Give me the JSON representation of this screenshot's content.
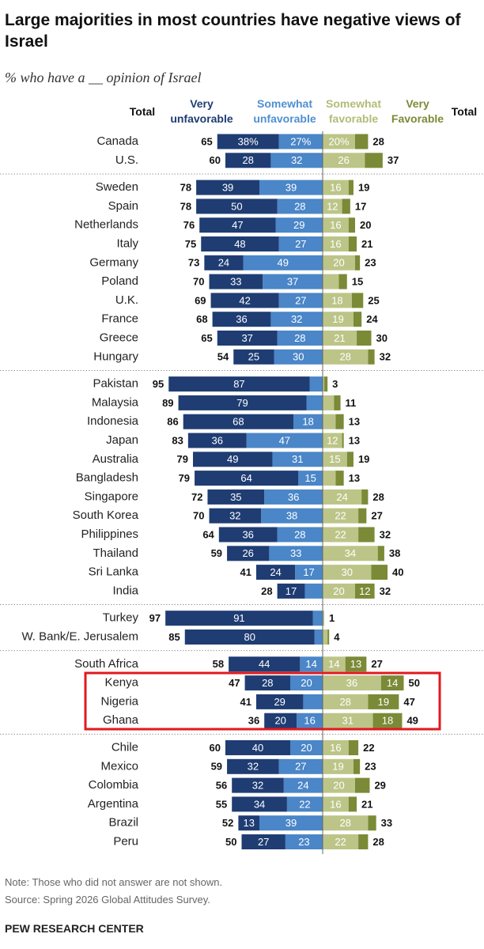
{
  "chart_data": {
    "type": "diverging_bar",
    "title": "Large majorities in most countries have negative views of Israel",
    "subtitle": "% who have a __ opinion of Israel",
    "categories": [
      [
        "Canada",
        "U.S."
      ],
      [
        "Sweden",
        "Spain",
        "Netherlands",
        "Italy",
        "Germany",
        "Poland",
        "U.K.",
        "France",
        "Greece",
        "Hungary"
      ],
      [
        "Pakistan",
        "Malaysia",
        "Indonesia",
        "Japan",
        "Australia",
        "Bangladesh",
        "Singapore",
        "South Korea",
        "Philippines",
        "Thailand",
        "Sri Lanka",
        "India"
      ],
      [
        "Turkey",
        "W. Bank/E. Jerusalem"
      ],
      [
        "South Africa",
        "Kenya",
        "Nigeria",
        "Ghana"
      ],
      [
        "Chile",
        "Mexico",
        "Colombia",
        "Argentina",
        "Brazil",
        "Peru"
      ]
    ],
    "series": [
      {
        "name": "Very unfavorable",
        "color": "#1f3d73",
        "side": "negative",
        "values": [
          [
            38,
            28
          ],
          [
            39,
            50,
            47,
            48,
            24,
            33,
            42,
            36,
            37,
            25
          ],
          [
            87,
            79,
            68,
            36,
            49,
            64,
            35,
            32,
            36,
            26,
            24,
            17
          ],
          [
            91,
            80
          ],
          [
            44,
            28,
            29,
            20
          ],
          [
            40,
            32,
            32,
            34,
            13,
            27
          ]
        ],
        "value_labels": [
          [
            "38%",
            "28"
          ],
          [
            "39",
            "50",
            "47",
            "48",
            "24",
            "33",
            "42",
            "36",
            "37",
            "25"
          ],
          [
            "87",
            "79",
            "68",
            "36",
            "49",
            "64",
            "35",
            "32",
            "36",
            "26",
            "24",
            "17"
          ],
          [
            "91",
            "80"
          ],
          [
            "44",
            "28",
            "29",
            "20"
          ],
          [
            "40",
            "32",
            "32",
            "34",
            "13",
            "27"
          ]
        ]
      },
      {
        "name": "Somewhat unfavorable",
        "color": "#4a86c8",
        "side": "negative",
        "values": [
          [
            27,
            32
          ],
          [
            39,
            28,
            29,
            27,
            49,
            37,
            27,
            32,
            28,
            30
          ],
          [
            8,
            10,
            18,
            47,
            31,
            15,
            36,
            38,
            28,
            33,
            17,
            11
          ],
          [
            6,
            5
          ],
          [
            14,
            20,
            12,
            16
          ],
          [
            20,
            27,
            24,
            22,
            39,
            23
          ]
        ],
        "value_labels": [
          [
            "27%",
            "32"
          ],
          [
            "39",
            "28",
            "29",
            "27",
            "49",
            "37",
            "27",
            "32",
            "28",
            "30"
          ],
          [
            null,
            null,
            "18",
            "47",
            "31",
            "15",
            "36",
            "38",
            "28",
            "33",
            "17",
            null
          ],
          [
            null,
            null
          ],
          [
            "14",
            "20",
            null,
            "16"
          ],
          [
            "20",
            "27",
            "24",
            "22",
            "39",
            "23"
          ]
        ]
      },
      {
        "name": "Somewhat favorable",
        "color": "#bcc587",
        "side": "positive",
        "values": [
          [
            20,
            26
          ],
          [
            16,
            12,
            16,
            16,
            20,
            10,
            18,
            19,
            21,
            28
          ],
          [
            1,
            7,
            8,
            12,
            15,
            8,
            24,
            22,
            22,
            34,
            30,
            20
          ],
          [
            1,
            3
          ],
          [
            14,
            36,
            28,
            31
          ],
          [
            16,
            19,
            20,
            16,
            28,
            22
          ]
        ],
        "value_labels": [
          [
            "20%",
            "26"
          ],
          [
            "16",
            "12",
            "16",
            "16",
            "20",
            null,
            "18",
            "19",
            "21",
            "28"
          ],
          [
            null,
            null,
            null,
            "12",
            "15",
            null,
            "24",
            "22",
            "22",
            "34",
            "30",
            "20"
          ],
          [
            null,
            null
          ],
          [
            "14",
            "36",
            "28",
            "31"
          ],
          [
            "16",
            "19",
            "20",
            "16",
            "28",
            "22"
          ]
        ]
      },
      {
        "name": "Very Favorable",
        "color": "#7b8a36",
        "side": "positive",
        "values": [
          [
            8,
            11
          ],
          [
            3,
            5,
            4,
            5,
            3,
            5,
            7,
            5,
            9,
            4
          ],
          [
            2,
            4,
            5,
            1,
            4,
            5,
            4,
            5,
            10,
            4,
            10,
            12
          ],
          [
            0,
            1
          ],
          [
            13,
            14,
            19,
            18
          ],
          [
            6,
            4,
            9,
            5,
            5,
            6
          ]
        ],
        "value_labels": [
          [
            null,
            null
          ],
          [
            null,
            null,
            null,
            null,
            null,
            null,
            null,
            null,
            null,
            null
          ],
          [
            null,
            null,
            null,
            null,
            null,
            null,
            null,
            null,
            null,
            null,
            null,
            "12"
          ],
          [
            null,
            null
          ],
          [
            "13",
            "14",
            "19",
            "18"
          ],
          [
            null,
            null,
            null,
            null,
            null,
            null
          ]
        ]
      }
    ],
    "totals": [
      {
        "name": "Total",
        "side": "negative",
        "values": [
          [
            65,
            60
          ],
          [
            78,
            78,
            76,
            75,
            73,
            70,
            69,
            68,
            65,
            54
          ],
          [
            95,
            89,
            86,
            83,
            79,
            79,
            72,
            70,
            64,
            59,
            41,
            28
          ],
          [
            97,
            85
          ],
          [
            58,
            47,
            41,
            36
          ],
          [
            60,
            59,
            56,
            55,
            52,
            50
          ]
        ]
      },
      {
        "name": "Total",
        "side": "positive",
        "values": [
          [
            28,
            37
          ],
          [
            19,
            17,
            20,
            21,
            23,
            15,
            25,
            24,
            30,
            32
          ],
          [
            3,
            11,
            13,
            13,
            19,
            13,
            28,
            27,
            32,
            38,
            40,
            32
          ],
          [
            1,
            4
          ],
          [
            27,
            50,
            47,
            49
          ],
          [
            22,
            23,
            29,
            21,
            33,
            28
          ]
        ]
      }
    ]
  },
  "notes": [
    "Note: Those who did not answer are not shown.",
    "Source: Spring 2026 Global Attitudes Survey."
  ],
  "organization": "PEW RESEARCH CENTER"
}
